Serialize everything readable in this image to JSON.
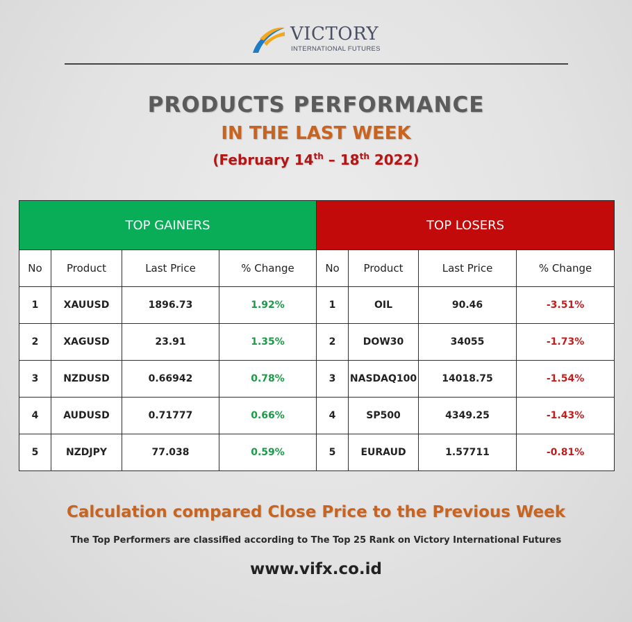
{
  "brand": {
    "name": "VICTORY",
    "subtitle": "INTERNATIONAL FUTURES",
    "colors": {
      "blue": "#1f7ac8",
      "gold": "#f2a81d",
      "navy": "#4a4f63"
    }
  },
  "heading": {
    "title": "PRODUCTS PERFORMANCE",
    "subtitle": "IN THE LAST WEEK",
    "date_open": "(February 14",
    "date_sup1": "th",
    "date_mid": " – 18",
    "date_sup2": "th",
    "date_close": " 2022)"
  },
  "table": {
    "gainers_title": "TOP GAINERS",
    "losers_title": "TOP LOSERS",
    "columns": [
      "No",
      "Product",
      "Last Price",
      "% Change"
    ],
    "gainers": [
      {
        "no": "1",
        "product": "XAUUSD",
        "last_price": "1896.73",
        "change": "1.92%"
      },
      {
        "no": "2",
        "product": "XAGUSD",
        "last_price": "23.91",
        "change": "1.35%"
      },
      {
        "no": "3",
        "product": "NZDUSD",
        "last_price": "0.66942",
        "change": "0.78%"
      },
      {
        "no": "4",
        "product": "AUDUSD",
        "last_price": "0.71777",
        "change": "0.66%"
      },
      {
        "no": "5",
        "product": "NZDJPY",
        "last_price": "77.038",
        "change": "0.59%"
      }
    ],
    "losers": [
      {
        "no": "1",
        "product": "OIL",
        "last_price": "90.46",
        "change": "-3.51%"
      },
      {
        "no": "2",
        "product": "DOW30",
        "last_price": "34055",
        "change": "-1.73%"
      },
      {
        "no": "3",
        "product": "NASDAQ100",
        "last_price": "14018.75",
        "change": "-1.54%"
      },
      {
        "no": "4",
        "product": "SP500",
        "last_price": "4349.25",
        "change": "-1.43%"
      },
      {
        "no": "5",
        "product": "EURAUD",
        "last_price": "1.57711",
        "change": "-0.81%"
      }
    ],
    "colors": {
      "gainers_header": "#09ad57",
      "losers_header": "#c30a0a",
      "positive": "#1b9b47",
      "negative": "#c41d1d"
    }
  },
  "footer": {
    "calculation": "Calculation compared Close Price to the Previous Week",
    "note": "The Top Performers are classified according to The Top 25 Rank on Victory International Futures",
    "website": "www.vifx.co.id"
  }
}
